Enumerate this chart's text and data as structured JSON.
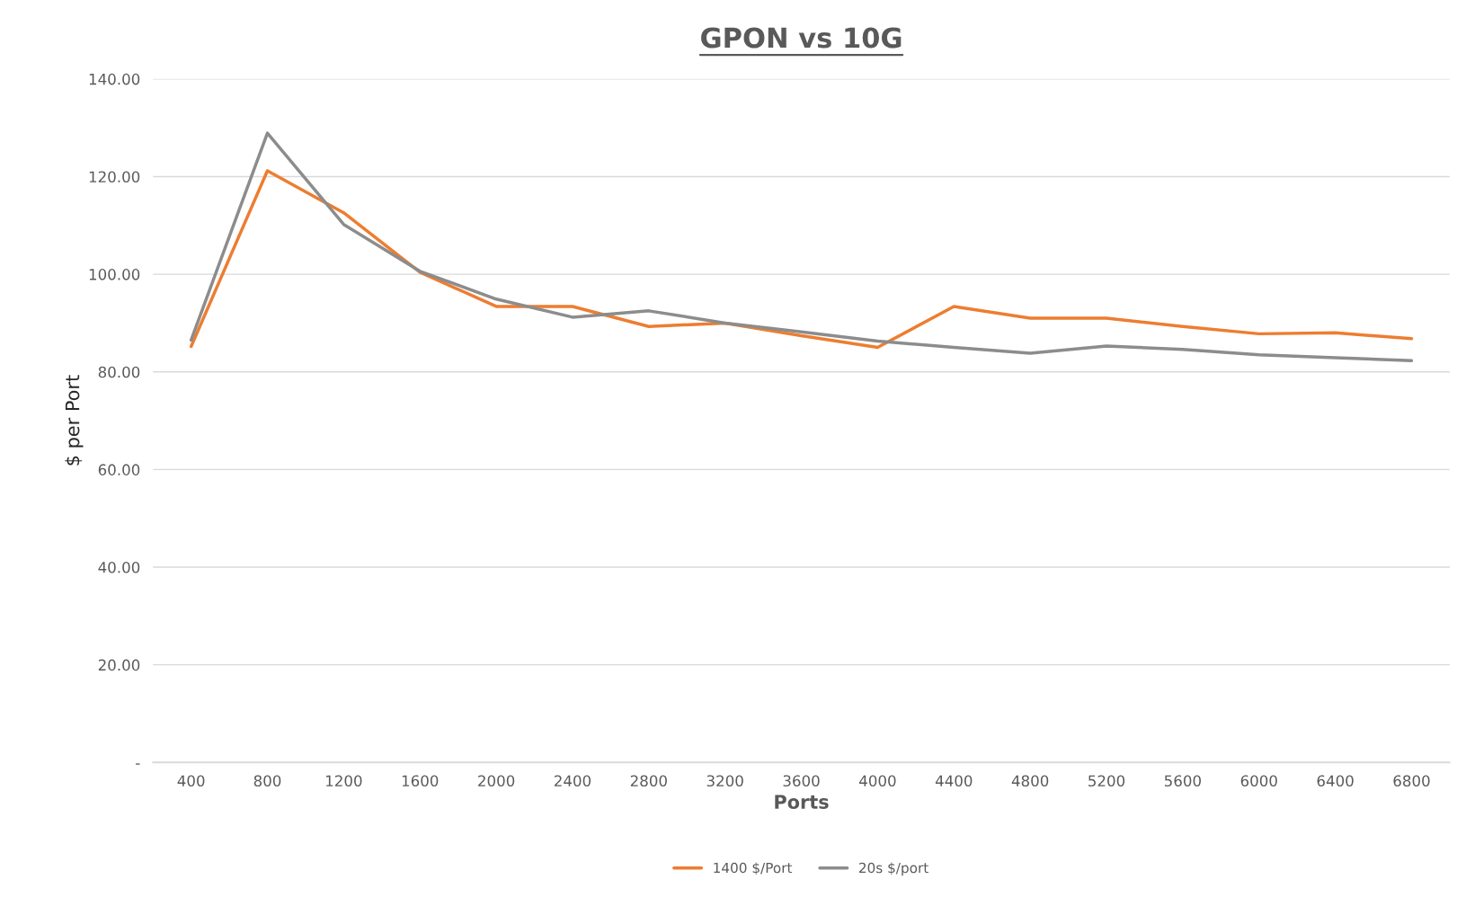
{
  "chart_data": {
    "type": "line",
    "title": "GPON vs 10G",
    "xlabel": "Ports",
    "ylabel": "$ per Port",
    "categories": [
      "400",
      "800",
      "1200",
      "1600",
      "2000",
      "2400",
      "2800",
      "3200",
      "3600",
      "4000",
      "4400",
      "4800",
      "5200",
      "5600",
      "6000",
      "6400",
      "6800"
    ],
    "series": [
      {
        "name": "1400 $/Port",
        "color": "#ed7d31",
        "values": [
          85.2,
          121.2,
          112.6,
          100.4,
          93.4,
          93.4,
          89.3,
          90.0,
          87.4,
          85.0,
          93.4,
          91.0,
          91.0,
          89.3,
          87.8,
          88.0,
          86.8
        ]
      },
      {
        "name": "20s $/port",
        "color": "#8c8c8c",
        "values": [
          86.5,
          128.9,
          110.2,
          100.6,
          94.9,
          91.2,
          92.5,
          90.0,
          88.2,
          86.3,
          85.0,
          83.8,
          85.3,
          84.6,
          83.5,
          82.9,
          82.3
        ]
      }
    ],
    "ylim": [
      0,
      140
    ],
    "yticks": [
      {
        "value": 0,
        "label": "-"
      },
      {
        "value": 20,
        "label": "20.00"
      },
      {
        "value": 40,
        "label": "40.00"
      },
      {
        "value": 60,
        "label": "60.00"
      },
      {
        "value": 80,
        "label": "80.00"
      },
      {
        "value": 100,
        "label": "100.00"
      },
      {
        "value": 120,
        "label": "120.00"
      },
      {
        "value": 140,
        "label": "140.00"
      }
    ],
    "grid": "y",
    "legend": "bottom",
    "marker": "none",
    "line_style": "solid"
  }
}
